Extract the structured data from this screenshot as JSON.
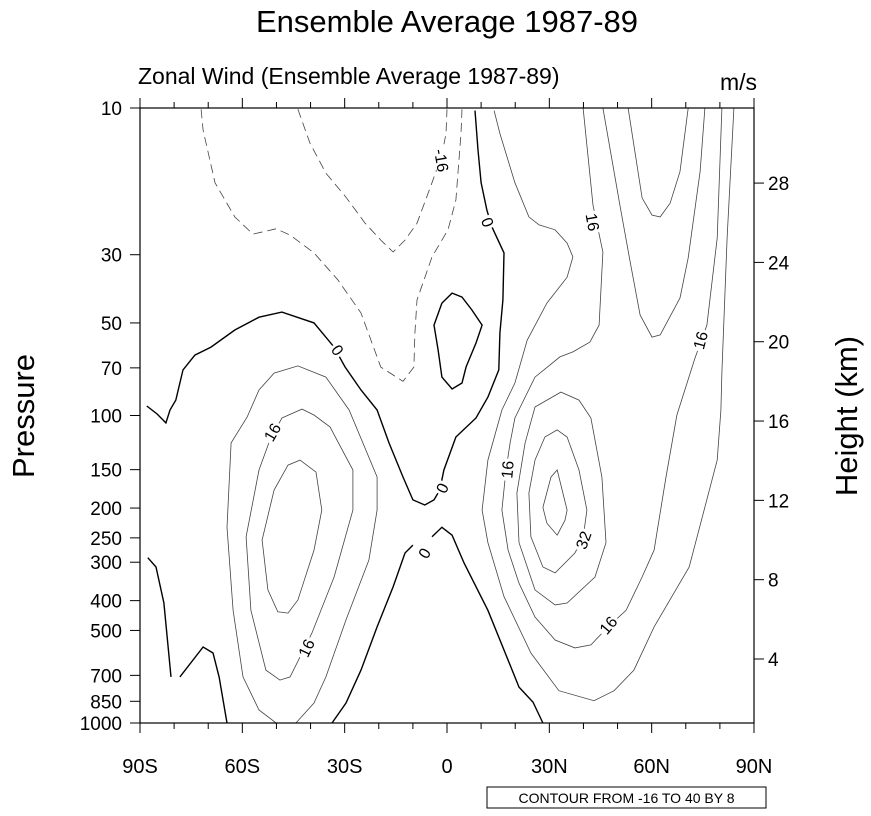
{
  "chart_data": {
    "type": "contour",
    "title": "Ensemble Average 1987-89",
    "subtitle": "Zonal Wind (Ensemble Average 1987-89)",
    "units": "m/s",
    "ylabel": "Pressure",
    "y2label": "Height (km)",
    "info_label": "CONTOUR FROM -16 TO 40 BY 8",
    "xlim": [
      -90,
      90
    ],
    "ylim": [
      1000,
      10
    ],
    "yscale": "log",
    "x_ticks": [
      {
        "value": -90,
        "label": "90S"
      },
      {
        "value": -60,
        "label": "60S"
      },
      {
        "value": -30,
        "label": "30S"
      },
      {
        "value": 0,
        "label": "0"
      },
      {
        "value": 30,
        "label": "30N"
      },
      {
        "value": 60,
        "label": "60N"
      },
      {
        "value": 90,
        "label": "90N"
      }
    ],
    "y_ticks": [
      10,
      30,
      50,
      70,
      100,
      150,
      200,
      250,
      300,
      400,
      500,
      700,
      850,
      1000
    ],
    "y2_ticks": [
      4,
      8,
      12,
      16,
      20,
      24,
      28
    ],
    "contours": [
      {
        "level": -8,
        "points": [
          [
            -72.1,
            10.1
          ],
          [
            -71.5,
            11.8
          ],
          [
            -68,
            17.5
          ],
          [
            -62.2,
            22.6
          ],
          [
            -56.9,
            25.7
          ],
          [
            -50.1,
            24.7
          ],
          [
            -46,
            25.9
          ],
          [
            -39,
            29.6
          ],
          [
            -32,
            36.2
          ],
          [
            -25.2,
            46.4
          ],
          [
            -19.4,
            69.6
          ],
          [
            -12.9,
            77.4
          ],
          [
            -9.7,
            69.6
          ],
          [
            -9.4,
            54
          ],
          [
            -8.8,
            42.1
          ],
          [
            -4.4,
            30.5
          ],
          [
            0.3,
            24.9
          ],
          [
            2.6,
            19.9
          ],
          [
            4.1,
            12.1
          ],
          [
            4.4,
            10.1
          ]
        ]
      },
      {
        "level": -16,
        "points": [
          [
            -43.7,
            10.1
          ],
          [
            -40.2,
            13
          ],
          [
            -35.5,
            16.3
          ],
          [
            -29.6,
            19.5
          ],
          [
            -24,
            23.7
          ],
          [
            -19.4,
            26.9
          ],
          [
            -15.8,
            29.4
          ],
          [
            -12.3,
            26.9
          ],
          [
            -8.8,
            23.7
          ],
          [
            -4.4,
            17.5
          ],
          [
            -1.5,
            14.2
          ],
          [
            -0.3,
            12.1
          ],
          [
            0,
            10.1
          ]
        ]
      },
      {
        "level": 0,
        "points": [
          [
            8.2,
            10.2
          ],
          [
            9.1,
            13.7
          ],
          [
            10,
            17.5
          ],
          [
            11.7,
            21.5
          ],
          [
            13.2,
            24.4
          ],
          [
            16.7,
            29.6
          ],
          [
            16.4,
            42.1
          ],
          [
            15.5,
            54
          ],
          [
            15.2,
            71.1
          ],
          [
            12,
            87.1
          ],
          [
            8.5,
            101.9
          ],
          [
            2.6,
            117.5
          ],
          [
            -0.9,
            150.4
          ],
          [
            -2.1,
            174.7
          ],
          [
            -3.8,
            188.2
          ],
          [
            -6.5,
            195.5
          ],
          [
            -10,
            188.2
          ],
          [
            -12.9,
            158.5
          ],
          [
            -17,
            122.8
          ],
          [
            -20.5,
            96
          ],
          [
            -25.2,
            82.6
          ],
          [
            -29.9,
            69.5
          ],
          [
            -33.1,
            59.9
          ],
          [
            -39,
            50
          ],
          [
            -48.4,
            46.1
          ],
          [
            -55.1,
            47.9
          ],
          [
            -62.2,
            52.7
          ],
          [
            -69.2,
            59.9
          ],
          [
            -73.9,
            63.6
          ],
          [
            -77.4,
            71.1
          ],
          [
            -79.5,
            89.1
          ],
          [
            -81.2,
            96
          ],
          [
            -82.4,
            105.7
          ],
          [
            -85,
            98.9
          ],
          [
            -88,
            93.1
          ]
        ]
      },
      {
        "level": 0,
        "points": [
          [
            -33.7,
            1000
          ],
          [
            -29.6,
            861
          ],
          [
            -25.2,
            673
          ],
          [
            -20.5,
            487
          ],
          [
            -15.8,
            361
          ],
          [
            -12.3,
            280
          ],
          [
            -10,
            264
          ]
        ]
      },
      {
        "level": 0,
        "points": [
          [
            -4.4,
            248
          ],
          [
            -1.5,
            231
          ],
          [
            1.5,
            245
          ],
          [
            5,
            302
          ],
          [
            12,
            430
          ],
          [
            16.7,
            579
          ],
          [
            21.1,
            764
          ],
          [
            25.2,
            855
          ],
          [
            28.1,
            1000
          ]
        ]
      },
      {
        "level": 0,
        "closed": true,
        "points": [
          [
            1.5,
            40
          ],
          [
            4.4,
            41.2
          ],
          [
            7.3,
            45.4
          ],
          [
            10.3,
            50.8
          ],
          [
            8.5,
            58.1
          ],
          [
            5.6,
            69.5
          ],
          [
            4.4,
            78.4
          ],
          [
            1.5,
            82
          ],
          [
            -1.5,
            75
          ],
          [
            -2.6,
            61.2
          ],
          [
            -3.8,
            50.8
          ],
          [
            -1.5,
            43.1
          ]
        ]
      },
      {
        "level": 0,
        "points": [
          [
            -87.7,
            290
          ],
          [
            -85.3,
            311
          ],
          [
            -83,
            407
          ],
          [
            -80.9,
            708
          ]
        ]
      },
      {
        "level": 0,
        "points": [
          [
            -78.3,
            708
          ],
          [
            -71.5,
            566
          ],
          [
            -68.6,
            592
          ],
          [
            -66.8,
            708
          ],
          [
            -64.5,
            1000
          ]
        ]
      },
      {
        "level": 8,
        "closed": true,
        "points": [
          [
            -58.6,
            101.2
          ],
          [
            -55.1,
            82.6
          ],
          [
            -50.7,
            72.8
          ],
          [
            -43.7,
            69
          ],
          [
            -35.5,
            75
          ],
          [
            -28.7,
            96
          ],
          [
            -20.5,
            158.5
          ],
          [
            -20.5,
            203
          ],
          [
            -22.9,
            295
          ],
          [
            -29.6,
            462
          ],
          [
            -35.5,
            708
          ],
          [
            -39,
            861
          ],
          [
            -44.3,
            1000
          ],
          [
            -50.1,
            1000
          ],
          [
            -55.1,
            907
          ],
          [
            -59.8,
            708
          ],
          [
            -62.7,
            430
          ],
          [
            -64.5,
            231
          ],
          [
            -63.3,
            122.8
          ]
        ]
      },
      {
        "level": 16,
        "closed": true,
        "points": [
          [
            -48.4,
            101.9
          ],
          [
            -42.5,
            95.3
          ],
          [
            -39,
            99.6
          ],
          [
            -34.3,
            108.9
          ],
          [
            -27.6,
            150.4
          ],
          [
            -27.6,
            203
          ],
          [
            -33.1,
            335
          ],
          [
            -39.6,
            510
          ],
          [
            -46,
            708
          ],
          [
            -49,
            725
          ],
          [
            -53.1,
            673
          ],
          [
            -57.5,
            430
          ],
          [
            -58.9,
            248
          ],
          [
            -55.1,
            150.4
          ],
          [
            -51.9,
            120
          ]
        ]
      },
      {
        "level": 24,
        "closed": true,
        "points": [
          [
            -43.1,
            139.6
          ],
          [
            -38.4,
            152.8
          ],
          [
            -36.7,
            203
          ],
          [
            -39,
            274
          ],
          [
            -43.7,
            398
          ],
          [
            -46.6,
            439
          ],
          [
            -49.6,
            435
          ],
          [
            -52.5,
            369
          ],
          [
            -54.2,
            254
          ],
          [
            -50.7,
            174.7
          ],
          [
            -46.6,
            145
          ]
        ]
      },
      {
        "level": 8,
        "points": [
          [
            13.8,
            10.2
          ],
          [
            15.5,
            12.1
          ],
          [
            19.9,
            17.5
          ],
          [
            24,
            22.6
          ],
          [
            27,
            24
          ],
          [
            31.7,
            24.9
          ],
          [
            35.2,
            27.5
          ],
          [
            36.9,
            30.5
          ],
          [
            35.2,
            35.5
          ],
          [
            29.3,
            43.1
          ],
          [
            23.5,
            56.9
          ],
          [
            19.9,
            78.4
          ],
          [
            16.1,
            96
          ],
          [
            12,
            139.6
          ],
          [
            10.3,
            203
          ],
          [
            12,
            259
          ],
          [
            16.7,
            388
          ],
          [
            24.6,
            592
          ],
          [
            32.8,
            785
          ],
          [
            43.1,
            846
          ],
          [
            49,
            785
          ],
          [
            54.8,
            673
          ],
          [
            60.7,
            487
          ],
          [
            71,
            311
          ],
          [
            79.2,
            139.6
          ],
          [
            80.3,
            96
          ],
          [
            80.6,
            72.2
          ],
          [
            82.1,
            26.5
          ],
          [
            84.1,
            10
          ]
        ]
      },
      {
        "level": 16,
        "points": [
          [
            39.9,
            10
          ],
          [
            42.8,
            20.7
          ],
          [
            45.7,
            29.4
          ],
          [
            44.6,
            50.8
          ],
          [
            41.9,
            57.7
          ],
          [
            36.9,
            62.1
          ],
          [
            33.1,
            64.5
          ],
          [
            25.8,
            75
          ],
          [
            19.9,
            101.9
          ],
          [
            18.5,
            122.8
          ],
          [
            17.3,
            150.4
          ],
          [
            16.1,
            203
          ],
          [
            17.9,
            274
          ],
          [
            21.1,
            351
          ],
          [
            25.8,
            452
          ],
          [
            31.7,
            537
          ],
          [
            37.5,
            570
          ],
          [
            42.2,
            557
          ],
          [
            47.2,
            487
          ],
          [
            52.5,
            430
          ],
          [
            57.2,
            335
          ],
          [
            60.7,
            274
          ],
          [
            64.2,
            158.5
          ],
          [
            67.4,
            99.6
          ],
          [
            72.7,
            65
          ],
          [
            76.2,
            50.8
          ],
          [
            79.2,
            26.5
          ],
          [
            80.6,
            10
          ]
        ]
      },
      {
        "level": 24,
        "points": [
          [
            45.7,
            10
          ],
          [
            50.7,
            20.7
          ],
          [
            53.7,
            31.7
          ],
          [
            56.6,
            47.1
          ],
          [
            60.1,
            55.6
          ],
          [
            62.5,
            54.7
          ],
          [
            68.3,
            41.5
          ],
          [
            70.7,
            30.7
          ],
          [
            74.2,
            16.1
          ],
          [
            75.6,
            10
          ]
        ]
      },
      {
        "level": 32,
        "points": [
          [
            53.1,
            10
          ],
          [
            57.2,
            19.6
          ],
          [
            60.1,
            22.3
          ],
          [
            62.5,
            22.6
          ],
          [
            65.4,
            20.4
          ],
          [
            68.3,
            16.1
          ],
          [
            70.7,
            10
          ]
        ]
      },
      {
        "level": 24,
        "closed": true,
        "points": [
          [
            25.8,
            93.8
          ],
          [
            33.4,
            83.9
          ],
          [
            38.7,
            89.1
          ],
          [
            42.2,
            101.9
          ],
          [
            45.4,
            158.5
          ],
          [
            46.6,
            259
          ],
          [
            43.4,
            335
          ],
          [
            35.2,
            407
          ],
          [
            31.7,
            413
          ],
          [
            25.8,
            369
          ],
          [
            21.1,
            259
          ],
          [
            20.5,
            178.7
          ],
          [
            22.9,
            122.8
          ]
        ]
      },
      {
        "level": 32,
        "closed": true,
        "points": [
          [
            32.3,
            111.4
          ],
          [
            35.2,
            117.5
          ],
          [
            38.7,
            150.4
          ],
          [
            41,
            203
          ],
          [
            39.9,
            250
          ],
          [
            37.5,
            280
          ],
          [
            31.7,
            325
          ],
          [
            28.1,
            311
          ],
          [
            24.6,
            248
          ],
          [
            24,
            178.7
          ],
          [
            25.8,
            139.6
          ],
          [
            28.7,
            117.5
          ]
        ]
      },
      {
        "level": 40,
        "closed": true,
        "points": [
          [
            32.3,
            150.4
          ],
          [
            35.2,
            203
          ],
          [
            34.6,
            219
          ],
          [
            32.3,
            245
          ],
          [
            29.3,
            224
          ],
          [
            28.1,
            199
          ],
          [
            30.5,
            158.5
          ]
        ]
      }
    ],
    "contour_labels": [
      {
        "text": "-16",
        "lat": -1.5,
        "p": 14.8,
        "angle": 80
      },
      {
        "text": "0",
        "lat": 12,
        "p": 23.5,
        "angle": 70
      },
      {
        "text": "16",
        "lat": 42.8,
        "p": 23.5,
        "angle": 80
      },
      {
        "text": "16",
        "lat": 74.2,
        "p": 56.9,
        "angle": -75
      },
      {
        "text": "0",
        "lat": -32,
        "p": 61.2,
        "angle": 55
      },
      {
        "text": "16",
        "lat": -51.3,
        "p": 113.2,
        "angle": -60
      },
      {
        "text": "16",
        "lat": 17.6,
        "p": 150,
        "angle": -85
      },
      {
        "text": "0",
        "lat": -1.5,
        "p": 172,
        "angle": -65
      },
      {
        "text": "0",
        "lat": -6.7,
        "p": 280,
        "angle": -60
      },
      {
        "text": "32",
        "lat": 39.9,
        "p": 254,
        "angle": -70
      },
      {
        "text": "16",
        "lat": 47.2,
        "p": 480,
        "angle": -50
      },
      {
        "text": "16",
        "lat": -41.3,
        "p": 570,
        "angle": -65
      }
    ]
  }
}
